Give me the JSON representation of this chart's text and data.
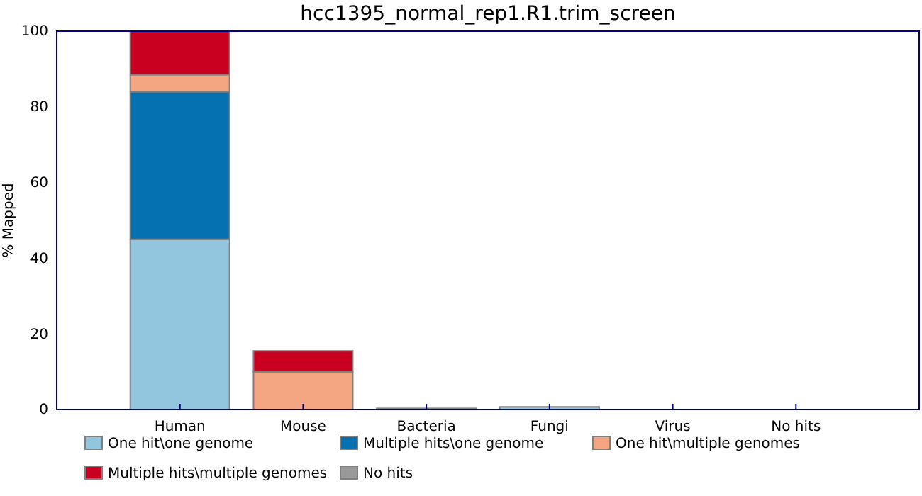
{
  "chart_data": {
    "type": "bar",
    "title": "hcc1395_normal_rep1.R1.trim_screen",
    "ylabel": "% Mapped",
    "stacked": true,
    "categories": [
      "Human",
      "Mouse",
      "Bacteria",
      "Fungi",
      "Virus",
      "No hits"
    ],
    "series": [
      {
        "name": "One hit\\one genome",
        "color": "#92c5de",
        "values": [
          45,
          0,
          0.3,
          0.7,
          0,
          0
        ]
      },
      {
        "name": "Multiple hits\\one genome",
        "color": "#0571b0",
        "values": [
          39,
          0,
          0,
          0,
          0,
          0
        ]
      },
      {
        "name": "One hit\\multiple genomes",
        "color": "#f4a582",
        "values": [
          4.5,
          10,
          0,
          0,
          0,
          0
        ]
      },
      {
        "name": "Multiple hits\\multiple genomes",
        "color": "#ca0020",
        "values": [
          11.5,
          5.5,
          0,
          0,
          0,
          0
        ]
      },
      {
        "name": "No hits",
        "color": "#999999",
        "values": [
          0,
          0,
          0,
          0,
          0,
          0
        ]
      }
    ],
    "ylim": [
      0,
      100
    ],
    "yticks": [
      0,
      20,
      40,
      60,
      80,
      100
    ],
    "grid": false,
    "legend": "bottom"
  }
}
